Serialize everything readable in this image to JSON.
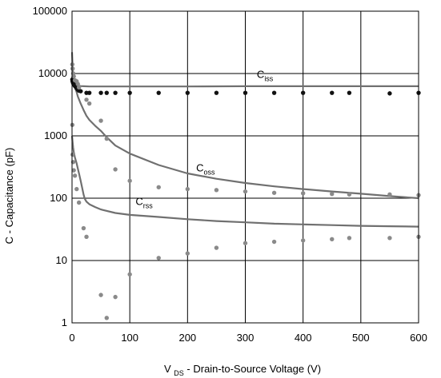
{
  "chart_data": {
    "type": "line",
    "title": "",
    "xlabel": {
      "prefix": "V",
      "sub": "DS",
      "rest": " - Drain-to-Source Voltage (V)"
    },
    "ylabel": "C - Capacitance (pF)",
    "xlim": [
      0,
      600
    ],
    "ylim": [
      1,
      100000
    ],
    "yscale": "log",
    "grid": true,
    "x_ticks": [
      0,
      100,
      200,
      300,
      400,
      500,
      600
    ],
    "x_tick_labels": [
      "0",
      "100",
      "200",
      "300",
      "400",
      "500",
      "600"
    ],
    "y_ticks": [
      1,
      10,
      100,
      1000,
      10000,
      100000
    ],
    "y_tick_labels": [
      "1",
      "10",
      "100",
      "1000",
      "10000",
      "100000"
    ],
    "colors": {
      "line": "#707070",
      "dot_dark": "#111111",
      "dot_gray": "#8a8a8a",
      "grid": "#000000"
    },
    "series": [
      {
        "name": "Ciss",
        "label_main": "C",
        "label_sub": "iss",
        "label_at": [
          320,
          8500
        ],
        "x": [
          0,
          1,
          2,
          3,
          4,
          5,
          7,
          10,
          15,
          20,
          30,
          50,
          100,
          200,
          300,
          400,
          500,
          600
        ],
        "y": [
          9000,
          8200,
          7700,
          7300,
          7000,
          6800,
          6600,
          6400,
          6300,
          6250,
          6200,
          6200,
          6200,
          6200,
          6250,
          6250,
          6250,
          6250
        ],
        "dots": {
          "color": "dot_dark",
          "x": [
            0.5,
            1,
            1.5,
            2,
            2.5,
            3,
            4,
            5,
            6,
            7,
            8,
            10,
            12,
            15,
            25,
            30,
            50,
            60,
            75,
            100,
            150,
            200,
            250,
            300,
            350,
            400,
            450,
            480,
            550,
            600
          ],
          "y": [
            8000,
            7500,
            7300,
            7000,
            6900,
            6700,
            6500,
            6300,
            6200,
            6000,
            5800,
            5500,
            5300,
            5200,
            4900,
            4900,
            4900,
            4900,
            4900,
            4900,
            4900,
            4900,
            4900,
            4900,
            4900,
            4900,
            4900,
            4900,
            4800,
            4900
          ]
        }
      },
      {
        "name": "Coss",
        "label_main": "C",
        "label_sub": "oss",
        "label_at": [
          215,
          270
        ],
        "x": [
          0,
          1,
          2,
          3,
          5,
          8,
          10,
          15,
          20,
          25,
          30,
          40,
          50,
          60,
          75,
          100,
          150,
          200,
          250,
          300,
          350,
          400,
          450,
          500,
          550,
          600
        ],
        "y": [
          22000,
          13000,
          9500,
          7500,
          6000,
          5000,
          4300,
          3300,
          2600,
          2100,
          1800,
          1450,
          1200,
          950,
          700,
          520,
          340,
          250,
          205,
          175,
          155,
          140,
          128,
          118,
          108,
          100
        ],
        "dots": {
          "color": "dot_gray",
          "x": [
            0.5,
            1,
            2,
            3,
            5,
            8,
            10,
            12,
            25,
            30,
            50,
            60,
            75,
            100,
            150,
            200,
            250,
            300,
            350,
            400,
            450,
            480,
            550,
            600
          ],
          "y": [
            14000,
            12000,
            10000,
            9000,
            7800,
            7500,
            6800,
            6000,
            3800,
            3300,
            1750,
            900,
            290,
            190,
            150,
            140,
            135,
            128,
            122,
            120,
            117,
            115,
            115,
            112
          ]
        }
      },
      {
        "name": "Crss",
        "label_main": "C",
        "label_sub": "rss",
        "label_at": [
          110,
          78
        ],
        "x": [
          0,
          1,
          2,
          3,
          5,
          8,
          10,
          12,
          15,
          18,
          20,
          22,
          25,
          30,
          40,
          50,
          75,
          100,
          150,
          200,
          250,
          300,
          350,
          400,
          450,
          500,
          550,
          600
        ],
        "y": [
          1000,
          800,
          650,
          550,
          450,
          360,
          300,
          250,
          190,
          140,
          115,
          98,
          88,
          80,
          72,
          66,
          58,
          54,
          50,
          46,
          43,
          41,
          39,
          38,
          37,
          36,
          35.5,
          35
        ],
        "dots": {
          "color": "dot_gray",
          "x": [
            0.5,
            1,
            2,
            3,
            5,
            8,
            12,
            20,
            25,
            50,
            60,
            75,
            100,
            150,
            200,
            250,
            300,
            350,
            400,
            450,
            480,
            550,
            600
          ],
          "y": [
            1500,
            500,
            380,
            280,
            230,
            140,
            85,
            33,
            24,
            2.8,
            1.2,
            2.6,
            6,
            11,
            13,
            16,
            19,
            20,
            21,
            22,
            23,
            23,
            24
          ]
        }
      }
    ]
  }
}
